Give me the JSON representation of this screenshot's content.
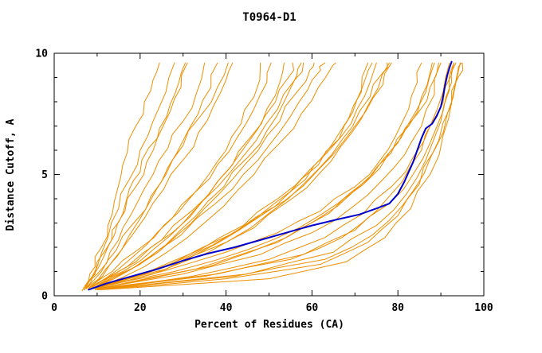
{
  "window": {
    "title": "T0964-D1"
  },
  "chart_data": {
    "type": "line",
    "title": "T0964-D1",
    "xlabel": "Percent of Residues (CA)",
    "ylabel": "Distance Cutoff, A",
    "xlim": [
      0,
      100
    ],
    "ylim": [
      0,
      10
    ],
    "x_ticks": [
      0,
      20,
      40,
      60,
      80,
      100
    ],
    "y_ticks": [
      0,
      5,
      10
    ],
    "x_minor_step": 10,
    "y_minor_step": 1,
    "grid": false,
    "legend": null,
    "series_color": "#EE8F00",
    "highlight_color": "#0000CC",
    "axis_color": "#000000",
    "background_color": "#FFFFFF",
    "blue_series": [
      [
        8,
        0.25
      ],
      [
        12,
        0.5
      ],
      [
        18,
        0.8
      ],
      [
        24,
        1.1
      ],
      [
        30,
        1.45
      ],
      [
        36,
        1.75
      ],
      [
        42,
        2.0
      ],
      [
        48,
        2.3
      ],
      [
        54,
        2.6
      ],
      [
        60,
        2.9
      ],
      [
        66,
        3.15
      ],
      [
        71,
        3.35
      ],
      [
        75,
        3.6
      ],
      [
        78,
        3.8
      ],
      [
        80,
        4.2
      ],
      [
        81.5,
        4.7
      ],
      [
        82.5,
        5.1
      ],
      [
        83.5,
        5.5
      ],
      [
        84.5,
        6.0
      ],
      [
        85.5,
        6.5
      ],
      [
        86.5,
        6.9
      ],
      [
        88,
        7.1
      ],
      [
        89,
        7.4
      ],
      [
        90,
        7.8
      ],
      [
        90.5,
        8.2
      ],
      [
        91,
        8.7
      ],
      [
        91.5,
        9.1
      ],
      [
        92,
        9.4
      ],
      [
        92.5,
        9.65
      ]
    ],
    "orange_series": [
      [
        [
          6.5,
          0.2
        ],
        [
          8,
          0.6
        ],
        [
          9.5,
          1.2
        ],
        [
          11,
          2.0
        ],
        [
          12.5,
          2.9
        ],
        [
          14,
          3.9
        ],
        [
          15.5,
          4.9
        ],
        [
          17,
          5.9
        ],
        [
          19,
          7.0
        ],
        [
          21,
          8.0
        ],
        [
          23,
          8.9
        ],
        [
          24.5,
          9.6
        ]
      ],
      [
        [
          7,
          0.25
        ],
        [
          9,
          0.8
        ],
        [
          11.5,
          1.6
        ],
        [
          14,
          2.5
        ],
        [
          16.5,
          3.5
        ],
        [
          19,
          4.5
        ],
        [
          21.5,
          5.5
        ],
        [
          24,
          6.5
        ],
        [
          27,
          7.6
        ],
        [
          29.5,
          8.6
        ],
        [
          31,
          9.6
        ]
      ],
      [
        [
          7,
          0.25
        ],
        [
          10,
          0.9
        ],
        [
          13,
          1.8
        ],
        [
          16,
          2.8
        ],
        [
          19.5,
          3.9
        ],
        [
          23,
          5.0
        ],
        [
          26.5,
          6.1
        ],
        [
          30,
          7.2
        ],
        [
          33,
          8.3
        ],
        [
          35,
          9.6
        ]
      ],
      [
        [
          7.5,
          0.3
        ],
        [
          11,
          1.0
        ],
        [
          14.5,
          1.9
        ],
        [
          18.5,
          3.0
        ],
        [
          22.5,
          4.1
        ],
        [
          26.5,
          5.3
        ],
        [
          30,
          6.4
        ],
        [
          33.5,
          7.5
        ],
        [
          36.5,
          8.6
        ],
        [
          38,
          9.6
        ]
      ],
      [
        [
          7.5,
          0.3
        ],
        [
          12,
          1.1
        ],
        [
          16.5,
          2.1
        ],
        [
          21,
          3.2
        ],
        [
          25.5,
          4.4
        ],
        [
          30,
          5.6
        ],
        [
          33.5,
          6.7
        ],
        [
          37,
          7.8
        ],
        [
          40,
          8.9
        ],
        [
          41.5,
          9.6
        ]
      ],
      [
        [
          7,
          0.25
        ],
        [
          9.5,
          0.9
        ],
        [
          12,
          1.9
        ],
        [
          13.5,
          2.7
        ],
        [
          16,
          3.4
        ],
        [
          17.5,
          4.4
        ],
        [
          20,
          5.1
        ],
        [
          22,
          6.1
        ],
        [
          24.5,
          6.9
        ],
        [
          27,
          7.9
        ],
        [
          29,
          8.8
        ],
        [
          30.5,
          9.6
        ]
      ],
      [
        [
          7,
          0.25
        ],
        [
          10,
          1.2
        ],
        [
          12.5,
          2.4
        ],
        [
          15,
          3.6
        ],
        [
          17.5,
          4.8
        ],
        [
          20,
          6.0
        ],
        [
          23,
          7.2
        ],
        [
          26,
          8.4
        ],
        [
          28,
          9.6
        ]
      ],
      [
        [
          8,
          0.3
        ],
        [
          13,
          1.3
        ],
        [
          17.5,
          2.5
        ],
        [
          22,
          3.8
        ],
        [
          26,
          5.0
        ],
        [
          30,
          6.2
        ],
        [
          34,
          7.4
        ],
        [
          38,
          8.6
        ],
        [
          40.5,
          9.6
        ]
      ],
      [
        [
          8,
          0.3
        ],
        [
          13.5,
          1.0
        ],
        [
          19.5,
          1.9
        ],
        [
          25.5,
          2.9
        ],
        [
          31,
          3.9
        ],
        [
          36,
          5.0
        ],
        [
          40,
          6.0
        ],
        [
          43.5,
          7.1
        ],
        [
          46.5,
          8.2
        ],
        [
          48,
          9.6
        ]
      ],
      [
        [
          8,
          0.3
        ],
        [
          15,
          1.1
        ],
        [
          21.5,
          2.1
        ],
        [
          27.5,
          3.2
        ],
        [
          33,
          4.3
        ],
        [
          38,
          5.4
        ],
        [
          42.5,
          6.5
        ],
        [
          46.5,
          7.7
        ],
        [
          49.5,
          8.8
        ],
        [
          50.5,
          9.6
        ]
      ],
      [
        [
          8.5,
          0.3
        ],
        [
          16,
          1.0
        ],
        [
          23,
          1.9
        ],
        [
          30,
          3.0
        ],
        [
          36,
          4.2
        ],
        [
          41.5,
          5.4
        ],
        [
          45.5,
          6.5
        ],
        [
          49.5,
          7.7
        ],
        [
          52.5,
          8.8
        ],
        [
          53.5,
          9.6
        ]
      ],
      [
        [
          8,
          0.3
        ],
        [
          17,
          1.2
        ],
        [
          25,
          2.3
        ],
        [
          32,
          3.5
        ],
        [
          38,
          4.7
        ],
        [
          43,
          5.8
        ],
        [
          47.5,
          6.9
        ],
        [
          51.5,
          8.0
        ],
        [
          54.5,
          9.0
        ],
        [
          55.5,
          9.6
        ]
      ],
      [
        [
          9,
          0.3
        ],
        [
          18,
          1.1
        ],
        [
          26,
          2.1
        ],
        [
          33,
          3.3
        ],
        [
          39.5,
          4.5
        ],
        [
          45,
          5.7
        ],
        [
          49.5,
          6.8
        ],
        [
          53.5,
          8.0
        ],
        [
          56.5,
          9.1
        ],
        [
          57.5,
          9.6
        ]
      ],
      [
        [
          9,
          0.3
        ],
        [
          19,
          1.2
        ],
        [
          28,
          2.4
        ],
        [
          35,
          3.6
        ],
        [
          41.5,
          4.8
        ],
        [
          47.5,
          6.0
        ],
        [
          52.5,
          7.2
        ],
        [
          56.5,
          8.4
        ],
        [
          59.5,
          9.3
        ],
        [
          60.5,
          9.6
        ]
      ],
      [
        [
          9,
          0.3
        ],
        [
          20,
          1.3
        ],
        [
          29.5,
          2.5
        ],
        [
          37.5,
          3.8
        ],
        [
          44,
          5.0
        ],
        [
          50,
          6.2
        ],
        [
          55,
          7.4
        ],
        [
          59,
          8.5
        ],
        [
          62,
          9.3
        ],
        [
          63,
          9.6
        ]
      ],
      [
        [
          9.5,
          0.3
        ],
        [
          21,
          1.2
        ],
        [
          31,
          2.4
        ],
        [
          39.5,
          3.7
        ],
        [
          46.5,
          5.0
        ],
        [
          52.5,
          6.3
        ],
        [
          57.5,
          7.5
        ],
        [
          61.5,
          8.6
        ],
        [
          64.5,
          9.4
        ],
        [
          65.5,
          9.6
        ]
      ],
      [
        [
          9.5,
          0.35
        ],
        [
          19,
          1.4
        ],
        [
          27.5,
          2.6
        ],
        [
          34.5,
          3.9
        ],
        [
          41,
          5.1
        ],
        [
          47,
          6.4
        ],
        [
          52,
          7.7
        ],
        [
          56,
          8.9
        ],
        [
          58,
          9.6
        ]
      ],
      [
        [
          9,
          0.3
        ],
        [
          22,
          1.0
        ],
        [
          34,
          1.9
        ],
        [
          44,
          2.9
        ],
        [
          52,
          4.0
        ],
        [
          59,
          5.1
        ],
        [
          64.5,
          6.2
        ],
        [
          68.5,
          7.3
        ],
        [
          71.5,
          8.4
        ],
        [
          73,
          9.6
        ]
      ],
      [
        [
          9,
          0.3
        ],
        [
          24,
          1.1
        ],
        [
          37,
          2.1
        ],
        [
          47,
          3.2
        ],
        [
          55,
          4.3
        ],
        [
          61.5,
          5.4
        ],
        [
          66.5,
          6.5
        ],
        [
          70.5,
          7.7
        ],
        [
          73.5,
          8.8
        ],
        [
          75,
          9.6
        ]
      ],
      [
        [
          9.5,
          0.3
        ],
        [
          26,
          1.1
        ],
        [
          40,
          2.2
        ],
        [
          50,
          3.4
        ],
        [
          58,
          4.6
        ],
        [
          64.5,
          5.8
        ],
        [
          69.5,
          7.0
        ],
        [
          73.5,
          8.2
        ],
        [
          76.5,
          9.2
        ],
        [
          77.5,
          9.6
        ]
      ],
      [
        [
          9.5,
          0.3
        ],
        [
          23,
          0.9
        ],
        [
          36,
          1.8
        ],
        [
          46.5,
          2.8
        ],
        [
          54.5,
          3.9
        ],
        [
          61.5,
          5.0
        ],
        [
          66.5,
          6.1
        ],
        [
          71.5,
          7.3
        ],
        [
          75.5,
          8.6
        ],
        [
          78,
          9.6
        ]
      ],
      [
        [
          9,
          0.3
        ],
        [
          21,
          0.9
        ],
        [
          33,
          1.7
        ],
        [
          43,
          2.7
        ],
        [
          51.5,
          3.7
        ],
        [
          58.5,
          4.8
        ],
        [
          63.5,
          5.9
        ],
        [
          67.5,
          7.0
        ],
        [
          70.5,
          8.1
        ],
        [
          72.5,
          9.0
        ],
        [
          74,
          9.6
        ]
      ],
      [
        [
          10,
          0.3
        ],
        [
          27,
          1.3
        ],
        [
          42,
          2.6
        ],
        [
          53.5,
          3.9
        ],
        [
          61.5,
          5.2
        ],
        [
          67.5,
          6.4
        ],
        [
          72.5,
          7.6
        ],
        [
          76.5,
          8.7
        ],
        [
          78.5,
          9.6
        ]
      ],
      [
        [
          9,
          0.3
        ],
        [
          25,
          1.0
        ],
        [
          40,
          1.8
        ],
        [
          52,
          2.6
        ],
        [
          62,
          3.5
        ],
        [
          70,
          4.5
        ],
        [
          75.5,
          5.5
        ],
        [
          79.5,
          6.6
        ],
        [
          82.5,
          7.7
        ],
        [
          84.5,
          8.8
        ],
        [
          85.5,
          9.6
        ]
      ],
      [
        [
          9.5,
          0.3
        ],
        [
          28,
          1.0
        ],
        [
          45,
          1.9
        ],
        [
          57,
          2.8
        ],
        [
          66,
          3.8
        ],
        [
          73,
          4.8
        ],
        [
          78.5,
          5.9
        ],
        [
          82.5,
          7.0
        ],
        [
          85.5,
          8.2
        ],
        [
          87.5,
          9.2
        ],
        [
          88,
          9.6
        ]
      ],
      [
        [
          10,
          0.3
        ],
        [
          30,
          0.9
        ],
        [
          48,
          1.7
        ],
        [
          60,
          2.6
        ],
        [
          69,
          3.6
        ],
        [
          76,
          4.7
        ],
        [
          81.5,
          5.8
        ],
        [
          85.5,
          7.0
        ],
        [
          88.5,
          8.3
        ],
        [
          90,
          9.6
        ]
      ],
      [
        [
          9.5,
          0.25
        ],
        [
          32,
          0.8
        ],
        [
          50,
          1.5
        ],
        [
          63,
          2.4
        ],
        [
          72,
          3.4
        ],
        [
          78.5,
          4.5
        ],
        [
          83.5,
          5.7
        ],
        [
          87.5,
          7.0
        ],
        [
          90.5,
          8.4
        ],
        [
          92,
          9.6
        ]
      ],
      [
        [
          10,
          0.25
        ],
        [
          35,
          0.8
        ],
        [
          55,
          1.5
        ],
        [
          67,
          2.4
        ],
        [
          75,
          3.5
        ],
        [
          81,
          4.7
        ],
        [
          85.5,
          6.0
        ],
        [
          88.5,
          7.3
        ],
        [
          91,
          8.6
        ],
        [
          93,
          9.6
        ]
      ],
      [
        [
          10,
          0.3
        ],
        [
          38,
          0.9
        ],
        [
          58,
          1.7
        ],
        [
          70,
          2.7
        ],
        [
          78,
          3.8
        ],
        [
          83.5,
          5.0
        ],
        [
          87.5,
          6.3
        ],
        [
          90.5,
          7.6
        ],
        [
          92.5,
          8.8
        ],
        [
          93.5,
          9.6
        ]
      ],
      [
        [
          10.5,
          0.25
        ],
        [
          40,
          0.7
        ],
        [
          62,
          1.3
        ],
        [
          73,
          2.2
        ],
        [
          80,
          3.3
        ],
        [
          85,
          4.6
        ],
        [
          88.5,
          6.0
        ],
        [
          91.5,
          7.5
        ],
        [
          93.5,
          8.8
        ],
        [
          94.5,
          9.6
        ]
      ],
      [
        [
          10,
          0.25
        ],
        [
          42,
          0.8
        ],
        [
          63,
          1.5
        ],
        [
          74,
          2.5
        ],
        [
          81,
          3.7
        ],
        [
          86,
          5.0
        ],
        [
          89.5,
          6.4
        ],
        [
          92.5,
          7.9
        ],
        [
          94,
          9.0
        ],
        [
          95,
          9.6
        ]
      ],
      [
        [
          10.5,
          0.3
        ],
        [
          33,
          1.1
        ],
        [
          52,
          2.2
        ],
        [
          64,
          3.4
        ],
        [
          72,
          4.6
        ],
        [
          78,
          5.9
        ],
        [
          82.5,
          7.1
        ],
        [
          86.5,
          8.4
        ],
        [
          88.5,
          9.6
        ]
      ],
      [
        [
          10.5,
          0.3
        ],
        [
          36,
          1.2
        ],
        [
          54,
          2.4
        ],
        [
          66,
          3.7
        ],
        [
          74,
          5.0
        ],
        [
          80,
          6.3
        ],
        [
          84.5,
          7.5
        ],
        [
          87.5,
          8.6
        ],
        [
          89.5,
          9.6
        ]
      ],
      [
        [
          10,
          0.25
        ],
        [
          45,
          0.9
        ],
        [
          65,
          1.8
        ],
        [
          75,
          2.9
        ],
        [
          82,
          4.2
        ],
        [
          86.5,
          5.6
        ],
        [
          90,
          7.2
        ],
        [
          92,
          8.5
        ],
        [
          93,
          9.6
        ]
      ],
      [
        [
          11,
          0.25
        ],
        [
          50,
          0.7
        ],
        [
          68,
          1.4
        ],
        [
          77,
          2.4
        ],
        [
          83,
          3.6
        ],
        [
          87.5,
          5.0
        ],
        [
          90.5,
          6.6
        ],
        [
          92.5,
          8.0
        ],
        [
          94,
          9.3
        ],
        [
          94.8,
          9.6
        ]
      ]
    ]
  }
}
